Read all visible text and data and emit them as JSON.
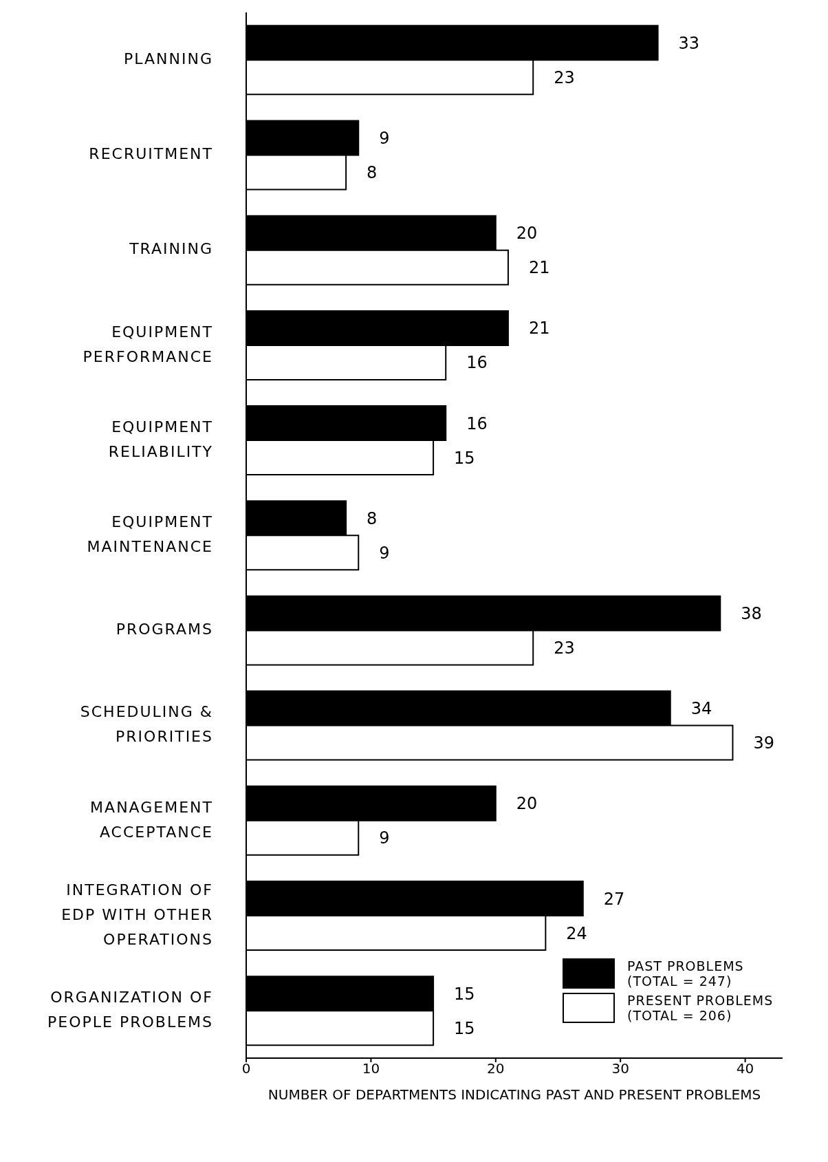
{
  "chart_data": {
    "type": "bar",
    "orientation": "horizontal",
    "categories": [
      "PLANNING",
      "RECRUITMENT",
      "TRAINING",
      "EQUIPMENT PERFORMANCE",
      "EQUIPMENT RELIABILITY",
      "EQUIPMENT MAINTENANCE",
      "PROGRAMS",
      "SCHEDULING & PRIORITIES",
      "MANAGEMENT ACCEPTANCE",
      "INTEGRATION OF EDP WITH OTHER OPERATIONS",
      "ORGANIZATION OF PEOPLE PROBLEMS"
    ],
    "series": [
      {
        "name": "PAST PROBLEMS (TOTAL = 247)",
        "color": "#000000",
        "values": [
          33,
          9,
          20,
          21,
          16,
          8,
          38,
          34,
          20,
          27,
          15
        ]
      },
      {
        "name": "PRESENT PROBLEMS (TOTAL = 206)",
        "color": "#ffffff",
        "values": [
          23,
          8,
          21,
          16,
          15,
          9,
          23,
          39,
          9,
          24,
          15
        ]
      }
    ],
    "xlabel": "NUMBER OF DEPARTMENTS INDICATING PAST AND PRESENT PROBLEMS",
    "xlim": [
      0,
      43
    ],
    "xticks": [
      0,
      10,
      20,
      30,
      40
    ],
    "data_labels": true,
    "legend": "bottom right",
    "grid": false
  }
}
